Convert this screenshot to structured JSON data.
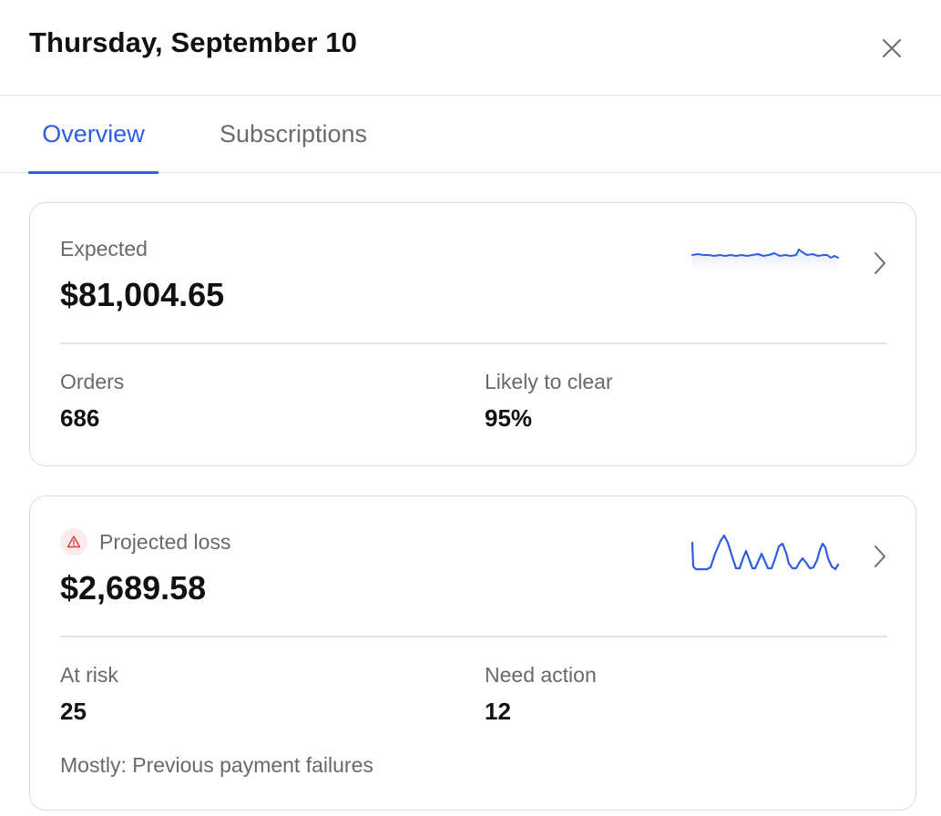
{
  "header": {
    "title": "Thursday, September 10",
    "close_icon": "close-icon"
  },
  "tabs": [
    {
      "label": "Overview",
      "active": true
    },
    {
      "label": "Subscriptions",
      "active": false
    }
  ],
  "expected_card": {
    "label": "Expected",
    "amount": "$81,004.65",
    "stats": [
      {
        "label": "Orders",
        "value": "686"
      },
      {
        "label": "Likely to clear",
        "value": "95%"
      }
    ],
    "sparkline_icon": "trend-sparkline",
    "chevron_icon": "chevron-right-icon"
  },
  "loss_card": {
    "label": "Projected loss",
    "warning_icon": "warning-triangle-icon",
    "amount": "$2,689.58",
    "stats": [
      {
        "label": "At risk",
        "value": "25"
      },
      {
        "label": "Need action",
        "value": "12"
      }
    ],
    "footnote": "Mostly: Previous payment failures",
    "sparkline_icon": "trend-sparkline",
    "chevron_icon": "chevron-right-icon"
  },
  "colors": {
    "accent": "#2f5ce0",
    "warning_bg": "#fdeaea",
    "warning_fg": "#d93a3a"
  }
}
